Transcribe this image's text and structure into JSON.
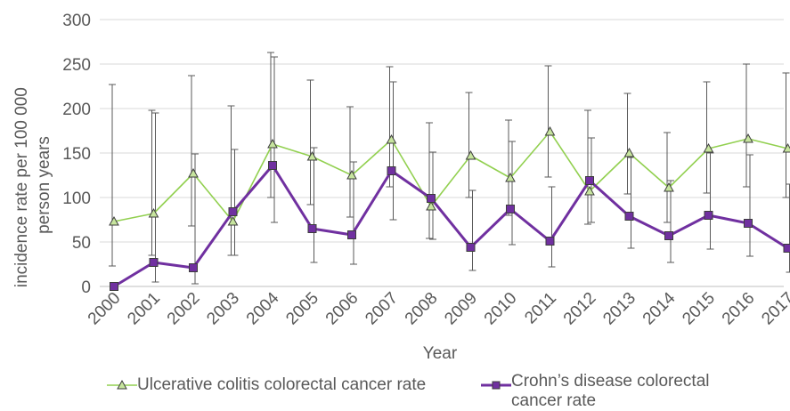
{
  "chart_data": {
    "type": "line",
    "xlabel": "Year",
    "ylabel_lines": [
      "incidence rate per 100 000",
      "person years"
    ],
    "ylim": [
      0,
      300
    ],
    "yticks": [
      0,
      50,
      100,
      150,
      200,
      250,
      300
    ],
    "grid": "horizontal",
    "legend_position": "bottom",
    "categories": [
      "2000",
      "2001",
      "2002",
      "2003",
      "2004",
      "2005",
      "2006",
      "2007",
      "2008",
      "2009",
      "2010",
      "2011",
      "2012",
      "2013",
      "2014",
      "2015",
      "2016",
      "2017"
    ],
    "series": [
      {
        "name": "Ulcerative colitis colorectal cancer rate",
        "marker": "triangle",
        "color": "#92d050",
        "values": [
          73,
          82,
          127,
          73,
          160,
          146,
          125,
          165,
          90,
          147,
          122,
          174,
          107,
          150,
          111,
          155,
          166,
          155
        ],
        "err_low": [
          23,
          35,
          68,
          35,
          100,
          92,
          78,
          112,
          54,
          100,
          80,
          123,
          70,
          104,
          72,
          105,
          112,
          100
        ],
        "err_high": [
          227,
          198,
          237,
          203,
          263,
          232,
          202,
          247,
          184,
          218,
          187,
          248,
          198,
          217,
          173,
          230,
          250,
          240
        ]
      },
      {
        "name": "Crohn’s disease colorectal cancer rate",
        "marker": "square",
        "color": "#7030a0",
        "values": [
          0,
          27,
          21,
          84,
          136,
          65,
          58,
          130,
          99,
          44,
          87,
          51,
          119,
          79,
          57,
          80,
          71,
          43
        ],
        "err_low": [
          0,
          5,
          3,
          35,
          72,
          27,
          25,
          75,
          53,
          18,
          47,
          22,
          72,
          43,
          27,
          42,
          34,
          16
        ],
        "err_high": [
          0,
          195,
          149,
          154,
          258,
          156,
          140,
          230,
          151,
          108,
          163,
          112,
          167,
          145,
          119,
          150,
          148,
          115
        ]
      }
    ]
  }
}
